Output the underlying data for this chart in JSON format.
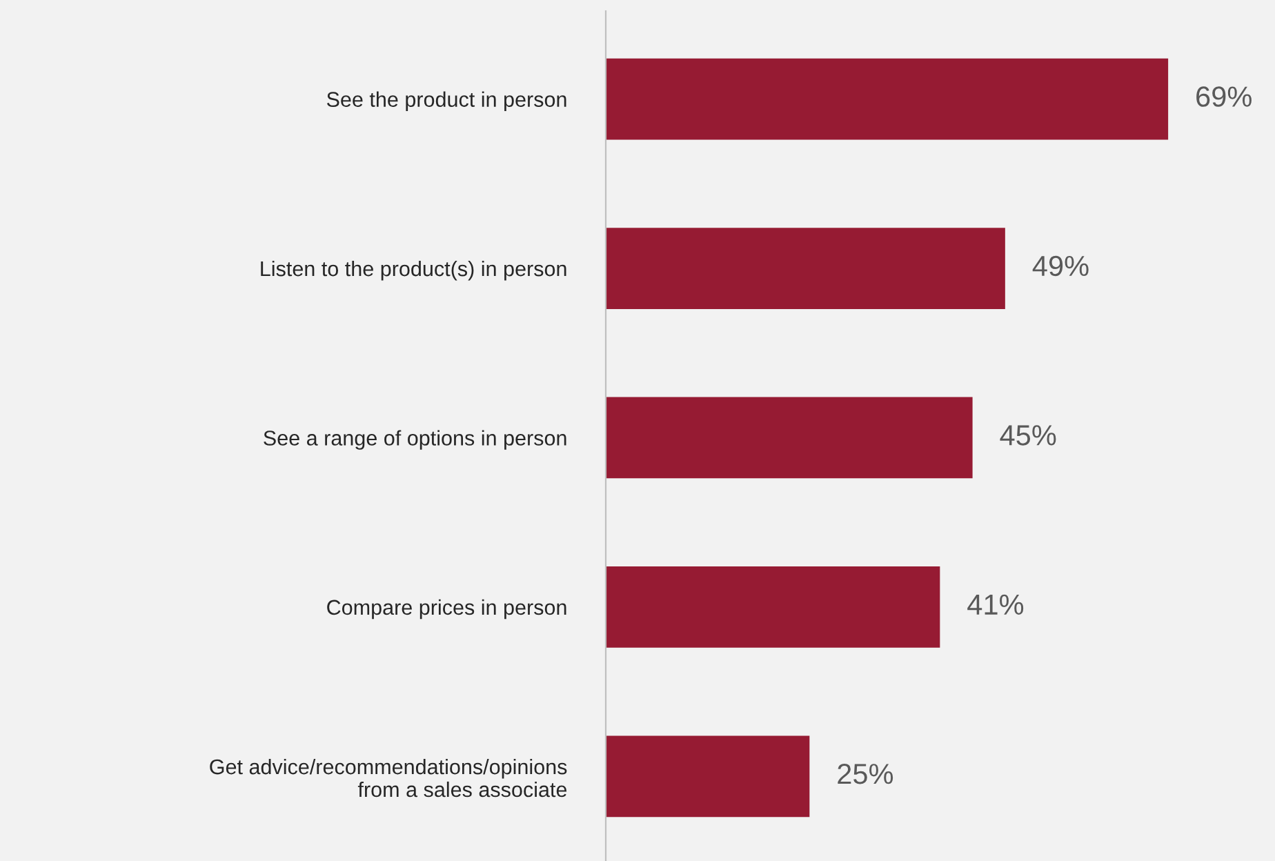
{
  "chart_data": {
    "type": "bar",
    "orientation": "horizontal",
    "categories": [
      "See the product in person",
      "Listen to the product(s) in person",
      "See a range of options in person",
      "Compare prices in person",
      "Get advice/recommendations/opinions\nfrom a sales associate"
    ],
    "values": [
      69,
      49,
      45,
      41,
      25
    ],
    "value_labels": [
      "69%",
      "49%",
      "45%",
      "41%",
      "25%"
    ],
    "color": "#961b33",
    "grid": false,
    "legend": false,
    "tick_labels": "y"
  }
}
